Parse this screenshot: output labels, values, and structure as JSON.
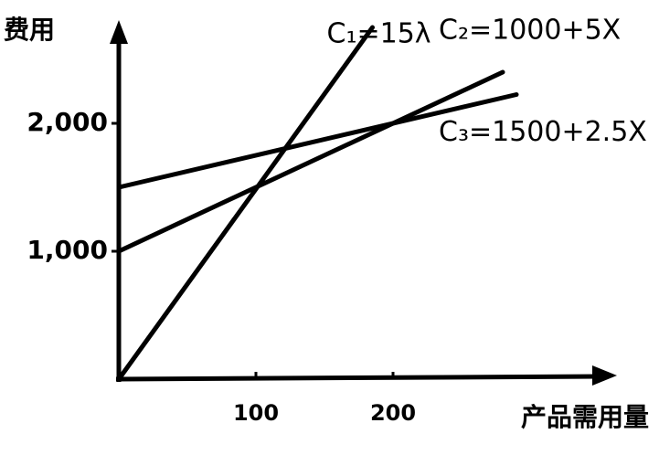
{
  "chart_data": {
    "type": "line",
    "y_label": "费用",
    "x_label": "产品需用量",
    "xlim": [
      0,
      350
    ],
    "ylim": [
      0,
      2750
    ],
    "xticks": [
      100,
      200
    ],
    "yticks": [
      {
        "value": 1000,
        "label": "1,000"
      },
      {
        "value": 2000,
        "label": "2,000"
      }
    ],
    "series": [
      {
        "name": "C₁=15λ",
        "color": "#000000",
        "x": [
          0,
          185
        ],
        "values": [
          0,
          2750
        ]
      },
      {
        "name": "C₂=1000+5X",
        "color": "#000000",
        "x": [
          0,
          280
        ],
        "values": [
          1000,
          2400
        ]
      },
      {
        "name": "C₃=1500+2.5X",
        "color": "#000000",
        "x": [
          0,
          290
        ],
        "values": [
          1500,
          2225
        ]
      }
    ]
  }
}
